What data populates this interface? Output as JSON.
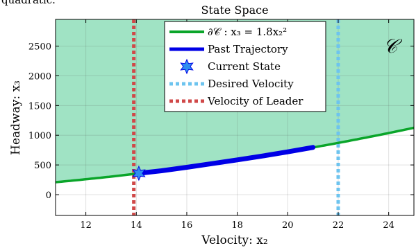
{
  "header_fragment": "quadratic.",
  "chart_data": {
    "type": "line",
    "title": "State Space",
    "xlabel": "Velocity: x₂",
    "ylabel": "Headway: x₃",
    "xlim": [
      10.8,
      25.0
    ],
    "ylim": [
      -350,
      2950
    ],
    "xticks": [
      12,
      14,
      16,
      18,
      20,
      22,
      24
    ],
    "yticks": [
      0,
      500,
      1000,
      1500,
      2000,
      2500
    ],
    "grid": true,
    "region_label": "𝒞",
    "boundary": {
      "name": "∂𝒞 : x₃ = 1.8x₂²",
      "coefficient": 1.8,
      "color": "#0aa52a",
      "fill_color": "#a0e3c4"
    },
    "series": [
      {
        "name": "Past Trajectory",
        "color": "#0000e6",
        "x": [
          14.1,
          15,
          16,
          17,
          18,
          19,
          20,
          21.0
        ],
        "y": [
          360,
          402,
          460,
          522,
          585,
          650,
          720,
          795
        ]
      }
    ],
    "current_state": {
      "name": "Current State",
      "x": 14.1,
      "y": 360,
      "color": "#2f8ef0"
    },
    "vlines": [
      {
        "name": "Desired Velocity",
        "x": 22,
        "color": "#6dc4ef"
      },
      {
        "name": "Velocity of Leader",
        "x": 13.9,
        "color": "#d04848"
      }
    ],
    "legend": {
      "position": "top-center",
      "entries": [
        "∂𝒞 : x₃ = 1.8x₂²",
        "Past Trajectory",
        "Current State",
        "Desired Velocity",
        "Velocity of Leader"
      ]
    }
  }
}
